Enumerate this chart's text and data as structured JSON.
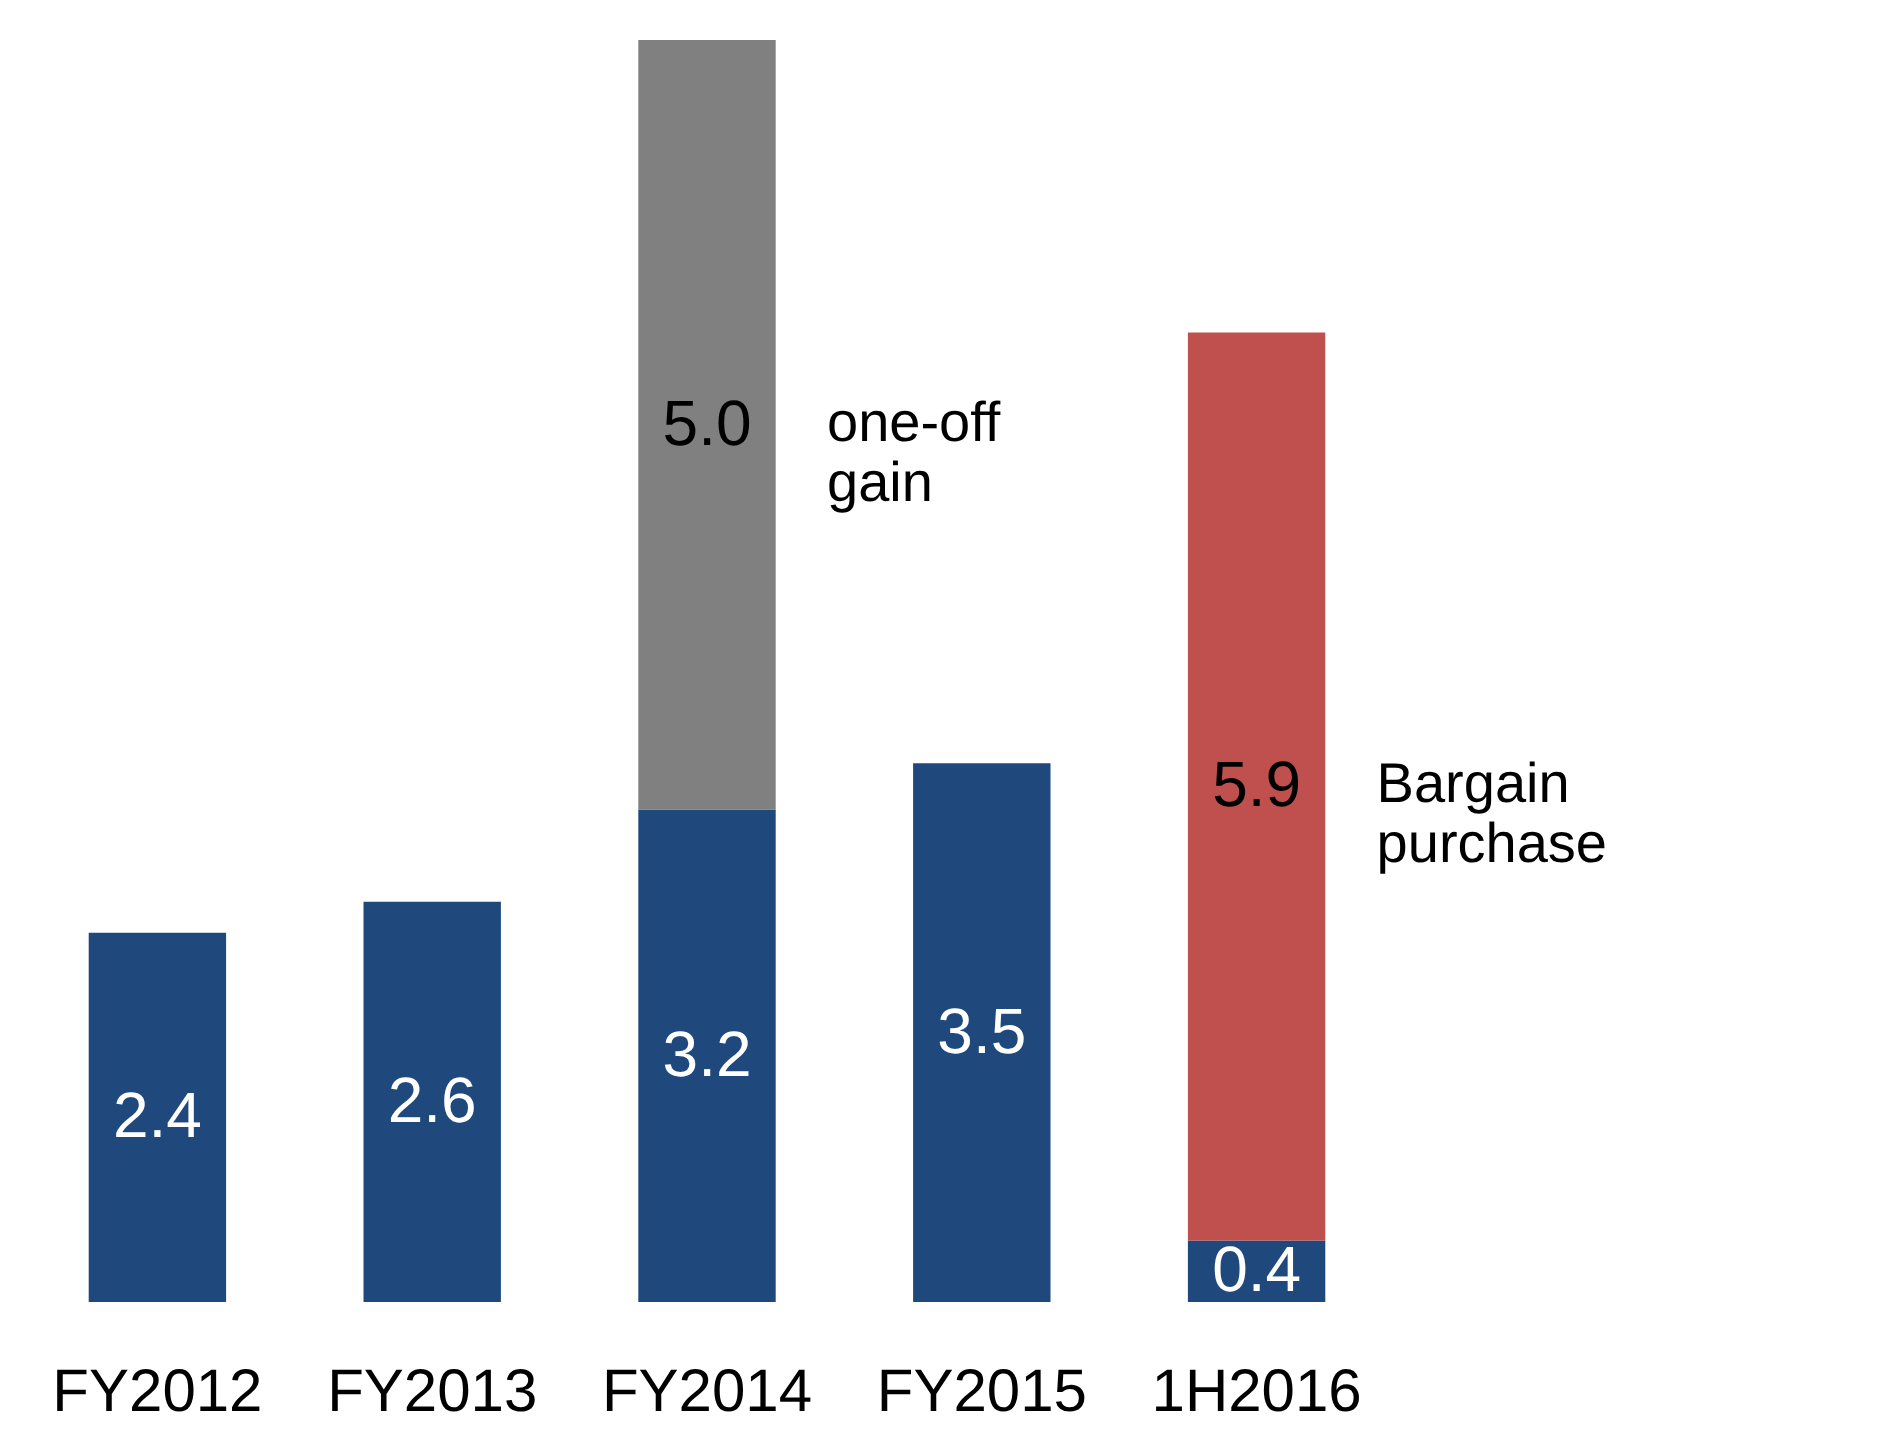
{
  "chart_data": {
    "type": "bar",
    "stacked": true,
    "categories": [
      "FY2012",
      "FY2013",
      "FY2014",
      "FY2015",
      "1H2016"
    ],
    "series": [
      {
        "color": "#1f497d",
        "values": [
          2.4,
          2.6,
          3.2,
          3.5,
          0.4
        ],
        "value_labels": [
          "2.4",
          "2.6",
          "3.2",
          "3.5",
          "0.4"
        ]
      },
      {
        "colors": [
          null,
          null,
          "#808080",
          null,
          "#c0504d"
        ],
        "values": [
          null,
          null,
          5.0,
          null,
          5.9
        ],
        "value_labels": [
          null,
          null,
          "5.0",
          null,
          "5.9"
        ]
      }
    ],
    "annotations": [
      "one-off gain",
      "Bargain purchase"
    ]
  }
}
